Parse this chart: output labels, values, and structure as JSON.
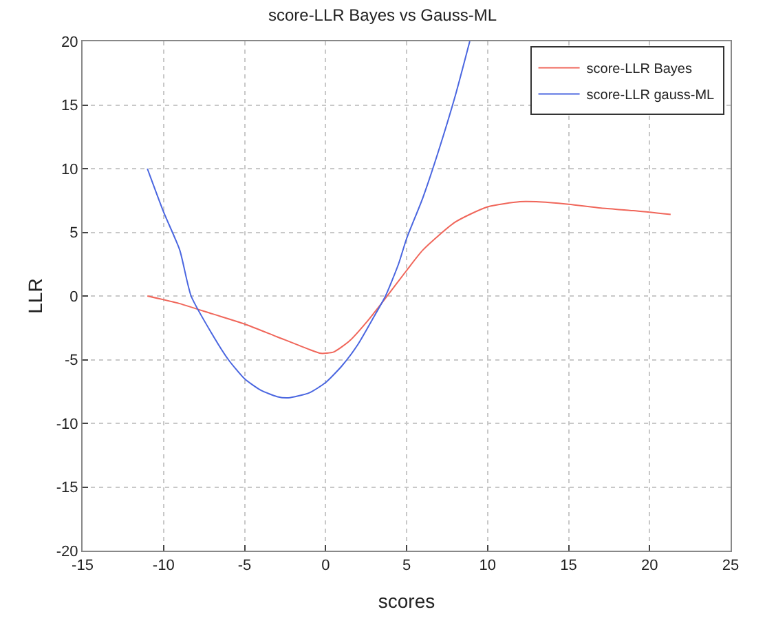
{
  "chart_data": {
    "type": "line",
    "title": "score-LLR Bayes vs Gauss-ML",
    "xlabel": "scores",
    "ylabel": "LLR",
    "xlim": [
      -15,
      25
    ],
    "ylim": [
      -20,
      20
    ],
    "xticks": [
      -15,
      -10,
      -5,
      0,
      5,
      10,
      15,
      20,
      25
    ],
    "yticks": [
      -20,
      -15,
      -10,
      -5,
      0,
      5,
      10,
      15,
      20
    ],
    "grid": true,
    "legend": "top right",
    "marker": "none",
    "line_style": "solid",
    "series": [
      {
        "name": "score-LLR Bayes",
        "color": "#f0665a",
        "x": [
          -11,
          -9,
          -7,
          -5,
          -3,
          -1,
          -0.3,
          0.5,
          1.5,
          2.5,
          3.5,
          5,
          6,
          8,
          10,
          12,
          13,
          15,
          17,
          19,
          21.3
        ],
        "values": [
          0,
          -0.6,
          -1.4,
          -2.2,
          -3.2,
          -4.2,
          -4.5,
          -4.4,
          -3.5,
          -2.1,
          -0.5,
          2,
          3.6,
          5.8,
          7,
          7.4,
          7.4,
          7.2,
          6.9,
          6.7,
          6.4
        ]
      },
      {
        "name": "score-LLR gauss-ML",
        "color": "#4a66e0",
        "x": [
          -11,
          -10,
          -9,
          -8.3,
          -7,
          -6,
          -5,
          -4,
          -3,
          -2.3,
          -1,
          0,
          1,
          2,
          3,
          3.7,
          4.5,
          5,
          6,
          7,
          8,
          8.9
        ],
        "values": [
          10,
          6.6,
          3.6,
          0,
          -3,
          -5,
          -6.5,
          -7.4,
          -7.9,
          -8,
          -7.6,
          -6.8,
          -5.5,
          -3.8,
          -1.6,
          0,
          2.5,
          4.5,
          7.7,
          11.5,
          15.7,
          20
        ]
      }
    ]
  }
}
